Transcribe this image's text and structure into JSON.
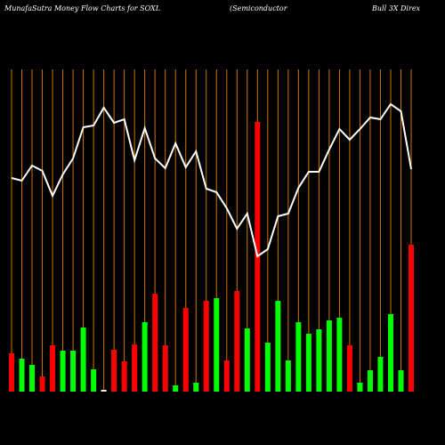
{
  "chart_data": {
    "type": "bar-line",
    "title_parts": [
      "MunafaSutra  Money Flow  Charts for SOXL",
      "(Semiconductor",
      "Bull 3X  Direx"
    ],
    "categories": [
      null,
      null,
      null,
      null,
      null,
      null,
      null,
      null,
      null,
      null,
      null,
      null,
      null,
      null,
      null,
      null,
      null,
      null,
      null,
      null,
      null,
      null,
      null,
      null,
      null,
      null,
      null,
      null,
      null,
      null,
      null,
      null,
      null,
      null,
      null,
      null,
      null,
      null,
      null,
      null
    ],
    "series": [
      {
        "type": "bar",
        "values": [
          43,
          37,
          30,
          17,
          52,
          46,
          46,
          72,
          25,
          2,
          47,
          34,
          53,
          78,
          110,
          52,
          7,
          94,
          10,
          102,
          105,
          35,
          113,
          71,
          303,
          55,
          102,
          35,
          78,
          65,
          70,
          80,
          83,
          52,
          10,
          24,
          39,
          87,
          24,
          165
        ],
        "colors": [
          "#ff0000",
          "#00ff00",
          "#00ff00",
          "#ff0000",
          "#ff0000",
          "#00ff00",
          "#00ff00",
          "#00ff00",
          "#00ff00",
          "#ffffff",
          "#ff0000",
          "#ff0000",
          "#ff0000",
          "#00ff00",
          "#ff0000",
          "#ff0000",
          "#00ff00",
          "#ff0000",
          "#00ff00",
          "#ff0000",
          "#00ff00",
          "#ff0000",
          "#ff0000",
          "#00ff00",
          "#ff0000",
          "#00ff00",
          "#00ff00",
          "#00ff00",
          "#00ff00",
          "#00ff00",
          "#00ff00",
          "#00ff00",
          "#00ff00",
          "#ff0000",
          "#00ff00",
          "#00ff00",
          "#00ff00",
          "#00ff00",
          "#00ff00",
          "#ff0000"
        ]
      },
      {
        "type": "line",
        "color": "#ffffff",
        "values": [
          240,
          237,
          254,
          248,
          220,
          244,
          262,
          297,
          299,
          319,
          302,
          306,
          260,
          296,
          262,
          251,
          279,
          252,
          270,
          228,
          224,
          206,
          183,
          200,
          152,
          160,
          197,
          200,
          229,
          247,
          247,
          272,
          295,
          283,
          295,
          308,
          306,
          323,
          315,
          250
        ]
      }
    ],
    "ylim": [
      0,
      440
    ],
    "gridline_color": "#cc7700"
  }
}
